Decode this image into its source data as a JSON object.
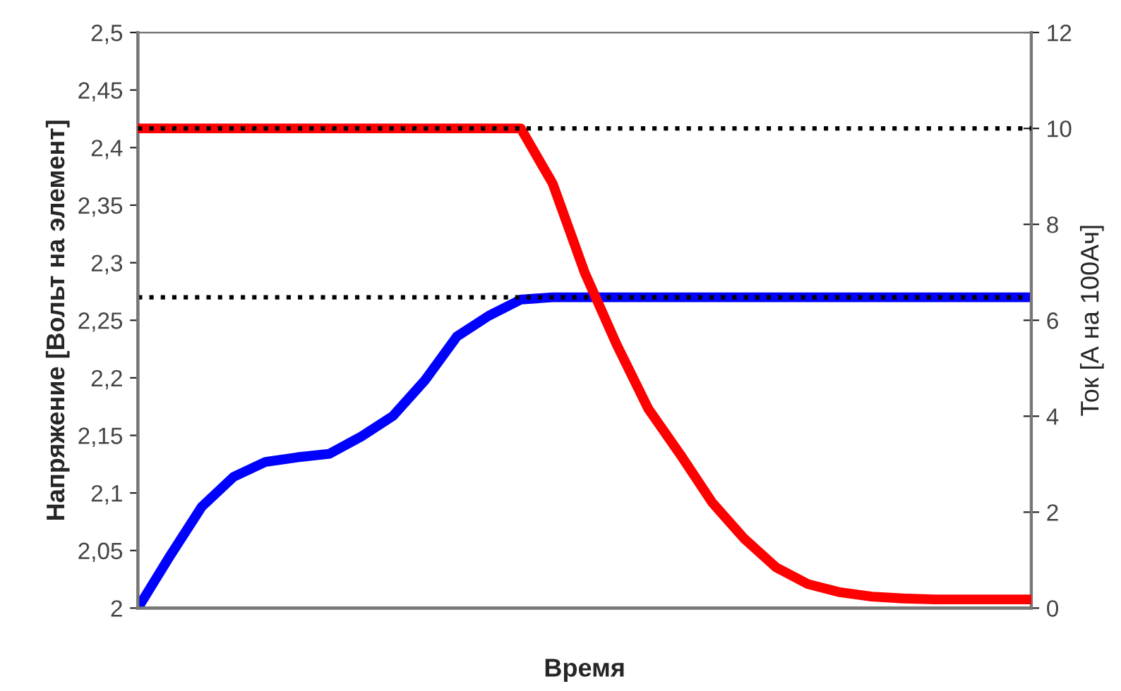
{
  "chart_data": {
    "type": "line",
    "xlabel": "Время",
    "ylabel": "Напряжение [Вольт на элемент]",
    "y2label": "Ток [А на 100Ач]",
    "categories": [
      null,
      null,
      null,
      null,
      null,
      null,
      null,
      null,
      null,
      null,
      null,
      null,
      null,
      null,
      null,
      null,
      null,
      null,
      null,
      null,
      null,
      null,
      null,
      null,
      null,
      null,
      null,
      null,
      null
    ],
    "ylim": [
      2,
      2.5
    ],
    "yticks": [
      {
        "value": 2,
        "label": "2"
      },
      {
        "value": 2.05,
        "label": "2,05"
      },
      {
        "value": 2.1,
        "label": "2,1"
      },
      {
        "value": 2.15,
        "label": "2,15"
      },
      {
        "value": 2.2,
        "label": "2,2"
      },
      {
        "value": 2.25,
        "label": "2,25"
      },
      {
        "value": 2.3,
        "label": "2,3"
      },
      {
        "value": 2.35,
        "label": "2,35"
      },
      {
        "value": 2.4,
        "label": "2,4"
      },
      {
        "value": 2.45,
        "label": "2,45"
      },
      {
        "value": 2.5,
        "label": "2,5"
      }
    ],
    "y2lim": [
      0,
      12
    ],
    "y2ticks": [
      0,
      2,
      4,
      6,
      8,
      10,
      12
    ],
    "grid": false,
    "legend": false,
    "marker": "none",
    "line_style": "solid",
    "ref_lines": [
      {
        "axis": "y",
        "value": 2.27,
        "color": "#000000",
        "line_style": "dotted"
      },
      {
        "axis": "y2",
        "value": 10,
        "color": "#000000",
        "line_style": "dotted"
      }
    ],
    "series": [
      {
        "color": "#0000ff",
        "values": [
          2.0,
          2.045,
          2.088,
          2.114,
          2.127,
          2.131,
          2.134,
          2.149,
          2.167,
          2.198,
          2.236,
          2.254,
          2.268,
          2.27,
          2.27,
          2.27,
          2.27,
          2.27,
          2.27,
          2.27,
          2.27,
          2.27,
          2.27,
          2.27,
          2.27,
          2.27,
          2.27,
          2.27,
          2.27
        ]
      },
      {
        "color": "#ff0000",
        "axis": "y2",
        "values": [
          10,
          10,
          10,
          10,
          10,
          10,
          10,
          10,
          10,
          10,
          10,
          10,
          10,
          8.85,
          7.0,
          5.5,
          4.15,
          3.2,
          2.2,
          1.45,
          0.85,
          0.5,
          0.33,
          0.24,
          0.2,
          0.18,
          0.18,
          0.18,
          0.18
        ]
      }
    ]
  }
}
